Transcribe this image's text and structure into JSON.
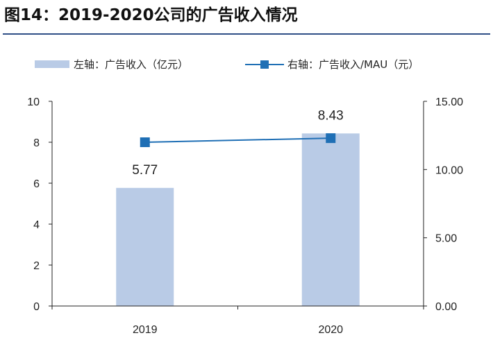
{
  "header": {
    "title": "图14：2019-2020公司的广告收入情况"
  },
  "chart_data": {
    "type": "bar",
    "categories": [
      "2019",
      "2020"
    ],
    "series": [
      {
        "name": "左轴：广告收入（亿元）",
        "type": "bar",
        "axis": "left",
        "values": [
          5.77,
          8.43
        ],
        "labels": [
          "5.77",
          "8.43"
        ],
        "color": "#b9cbe6"
      },
      {
        "name": "右轴：广告收入/MAU（元）",
        "type": "line",
        "axis": "right",
        "values": [
          12.0,
          12.3
        ],
        "color": "#1f6fb5"
      }
    ],
    "y_left": {
      "lim": [
        0,
        10
      ],
      "ticks": [
        "0",
        "2",
        "4",
        "6",
        "8",
        "10"
      ]
    },
    "y_right": {
      "lim": [
        0,
        15
      ],
      "ticks": [
        "0.00",
        "5.00",
        "10.00",
        "15.00"
      ]
    },
    "legend_position": "top",
    "grid": false
  }
}
